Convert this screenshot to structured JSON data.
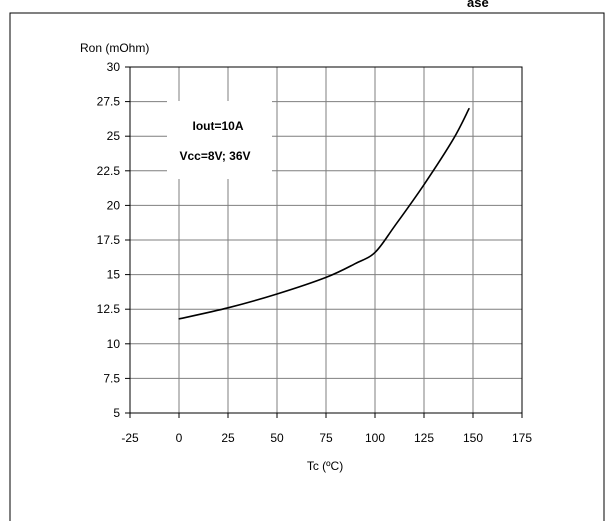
{
  "header_fragment": "ase",
  "chart_data": {
    "type": "line",
    "xlabel": "Tc (ºC)",
    "ylabel": "Ron (mOhm)",
    "xlim": [
      -25,
      175
    ],
    "ylim": [
      5,
      30
    ],
    "xticks": [
      -25,
      0,
      25,
      50,
      75,
      100,
      125,
      150,
      175
    ],
    "yticks": [
      5,
      7.5,
      10,
      12.5,
      15,
      17.5,
      20,
      22.5,
      25,
      27.5,
      30
    ],
    "grid": true,
    "annotations": [
      "Iout=10A",
      "Vcc=8V; 36V"
    ],
    "series": [
      {
        "x": [
          0,
          25,
          50,
          75,
          90,
          100,
          110,
          125,
          140,
          148
        ],
        "y": [
          11.8,
          12.6,
          13.6,
          14.8,
          15.8,
          16.6,
          18.5,
          21.5,
          24.8,
          27.0
        ]
      }
    ]
  }
}
